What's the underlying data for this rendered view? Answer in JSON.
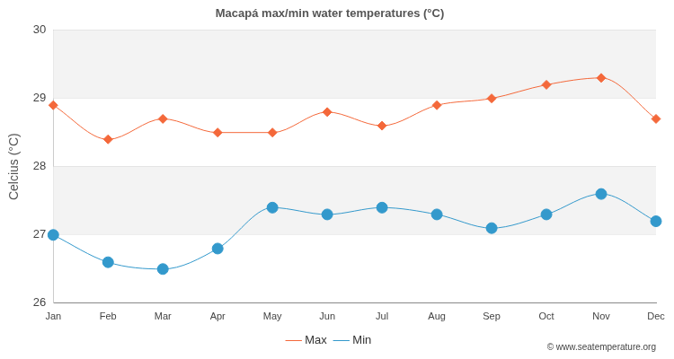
{
  "chart_data": {
    "type": "line",
    "title": "Macapá max/min water temperatures (°C)",
    "y_label": "Celcius (°C)",
    "annotation": "© www.seatemperature.org",
    "categories": [
      "Jan",
      "Feb",
      "Mar",
      "Apr",
      "May",
      "Jun",
      "Jul",
      "Aug",
      "Sep",
      "Oct",
      "Nov",
      "Dec"
    ],
    "series": [
      {
        "name": "Max",
        "color": "#f4683a",
        "marker": "diamond",
        "values": [
          28.9,
          28.4,
          28.7,
          28.5,
          28.5,
          28.8,
          28.6,
          28.9,
          29.0,
          29.2,
          29.3,
          28.7
        ]
      },
      {
        "name": "Min",
        "color": "#3399cc",
        "marker": "circle",
        "values": [
          27.0,
          26.6,
          26.5,
          26.8,
          27.4,
          27.3,
          27.4,
          27.3,
          27.1,
          27.3,
          27.6,
          27.2
        ]
      }
    ],
    "ylim": [
      26,
      30
    ],
    "yticks": [
      26,
      27,
      28,
      29,
      30
    ],
    "grid": true,
    "legend": "bottom"
  }
}
